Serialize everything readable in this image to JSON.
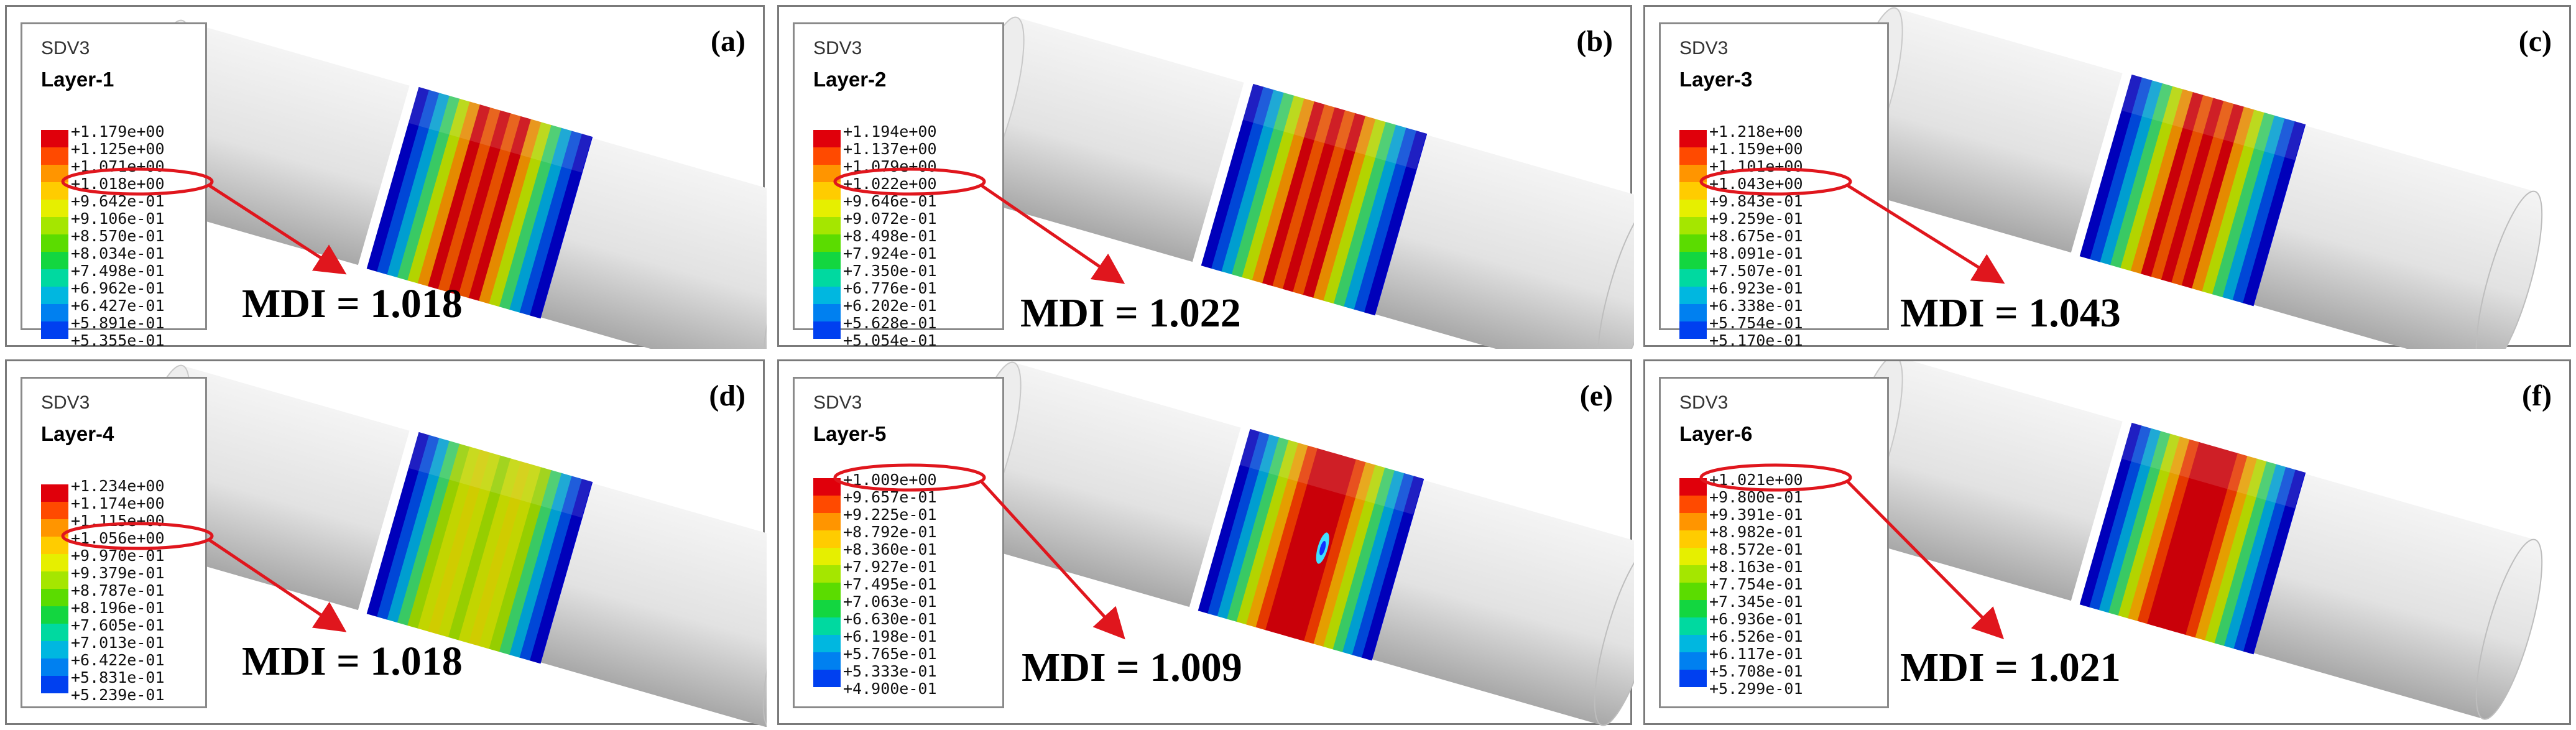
{
  "panels": [
    {
      "label": "(a)",
      "legend_title": "SDV3",
      "layer": "Layer-1",
      "ticks": [
        "+1.179e+00",
        "+1.125e+00",
        "+1.071e+00",
        "+1.018e+00",
        "+9.642e-01",
        "+9.106e-01",
        "+8.570e-01",
        "+8.034e-01",
        "+7.498e-01",
        "+6.962e-01",
        "+6.427e-01",
        "+5.891e-01",
        "+5.355e-01"
      ],
      "mdi": "MDI = 1.018",
      "pattern": "banded-peak"
    },
    {
      "label": "(b)",
      "legend_title": "SDV3",
      "layer": "Layer-2",
      "ticks": [
        "+1.194e+00",
        "+1.137e+00",
        "+1.079e+00",
        "+1.022e+00",
        "+9.646e-01",
        "+9.072e-01",
        "+8.498e-01",
        "+7.924e-01",
        "+7.350e-01",
        "+6.776e-01",
        "+6.202e-01",
        "+5.628e-01",
        "+5.054e-01"
      ],
      "mdi": "MDI = 1.022",
      "pattern": "banded-peak"
    },
    {
      "label": "(c)",
      "legend_title": "SDV3",
      "layer": "Layer-3",
      "ticks": [
        "+1.218e+00",
        "+1.159e+00",
        "+1.101e+00",
        "+1.043e+00",
        "+9.843e-01",
        "+9.259e-01",
        "+8.675e-01",
        "+8.091e-01",
        "+7.507e-01",
        "+6.923e-01",
        "+6.338e-01",
        "+5.754e-01",
        "+5.170e-01"
      ],
      "mdi": "MDI = 1.043",
      "pattern": "banded-peak"
    },
    {
      "label": "(d)",
      "legend_title": "SDV3",
      "layer": "Layer-4",
      "ticks": [
        "+1.234e+00",
        "+1.174e+00",
        "+1.115e+00",
        "+1.056e+00",
        "+9.970e-01",
        "+9.379e-01",
        "+8.787e-01",
        "+8.196e-01",
        "+7.605e-01",
        "+7.013e-01",
        "+6.422e-01",
        "+5.831e-01",
        "+5.239e-01"
      ],
      "mdi": "MDI = 1.018",
      "pattern": "mottled"
    },
    {
      "label": "(e)",
      "legend_title": "SDV3",
      "layer": "Layer-5",
      "ticks": [
        "+1.009e+00",
        "+9.657e-01",
        "+9.225e-01",
        "+8.792e-01",
        "+8.360e-01",
        "+7.927e-01",
        "+7.495e-01",
        "+7.063e-01",
        "+6.630e-01",
        "+6.198e-01",
        "+5.765e-01",
        "+5.333e-01",
        "+4.900e-01"
      ],
      "mdi": "MDI = 1.009",
      "pattern": "red-core"
    },
    {
      "label": "(f)",
      "legend_title": "SDV3",
      "layer": "Layer-6",
      "ticks": [
        "+1.021e+00",
        "+9.800e-01",
        "+9.391e-01",
        "+8.982e-01",
        "+8.572e-01",
        "+8.163e-01",
        "+7.754e-01",
        "+7.345e-01",
        "+6.936e-01",
        "+6.526e-01",
        "+6.117e-01",
        "+5.708e-01",
        "+5.299e-01"
      ],
      "mdi": "MDI = 1.021",
      "pattern": "red-core"
    }
  ],
  "colors": {
    "scale": [
      "#e0000b",
      "#ff4a00",
      "#ff9500",
      "#ffcc00",
      "#e6ef00",
      "#a5e600",
      "#5bdc00",
      "#13d640",
      "#00d9a0",
      "#00b7e0",
      "#0080f0",
      "#0040f0",
      "#0000d8"
    ],
    "highlight": "#e0161d",
    "cylinder": "#e2e2e2",
    "cylinder_shade": "#a8a8a8"
  }
}
